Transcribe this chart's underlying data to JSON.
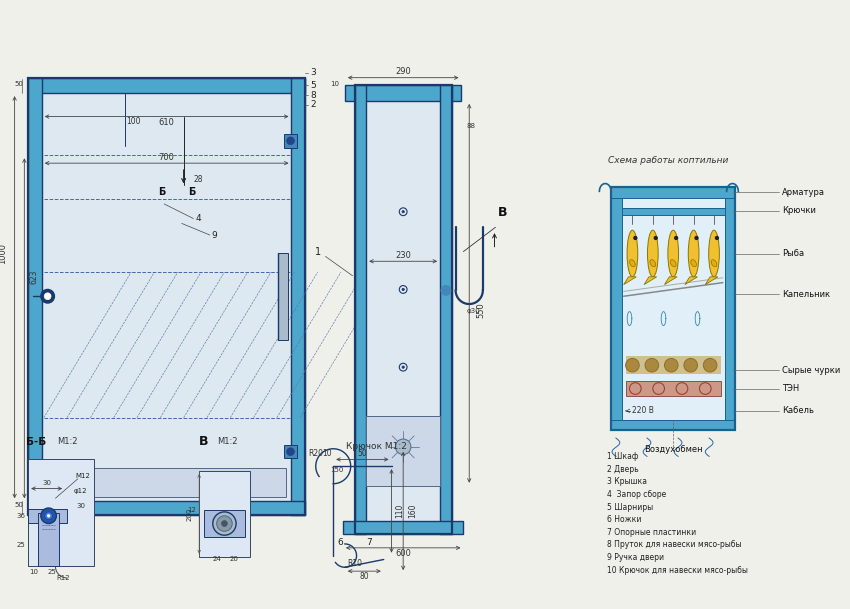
{
  "bg_color": "#f0f0eb",
  "line_color": "#1a3a6b",
  "dim_color": "#333333",
  "title": "Схема работы коптильни",
  "legend": [
    "1 Шкаф",
    "2 Дверь",
    "3 Крышка",
    "4  Запор сборе",
    "5 Шарниры",
    "6 Ножки",
    "7 Опорные пластинки",
    "8 Пруток для навески мясо-рыбы",
    "9 Ручка двери",
    "10 Крючок для навески мясо-рыбы"
  ],
  "scheme_labels": [
    "Арматура",
    "Крючки",
    "Рыба",
    "Капельник",
    "Сырые чурки",
    "ТЭН",
    "Кабель",
    "Воздухобмен"
  ],
  "bb_label": "Б-Б",
  "bb_scale": "M1:2",
  "v_label": "В",
  "v_scale": "M1:2",
  "hook_label": "Крючок M1:2",
  "struct_color": "#4da6cc",
  "fish_color": "#f0c030",
  "fish_edge": "#887700"
}
